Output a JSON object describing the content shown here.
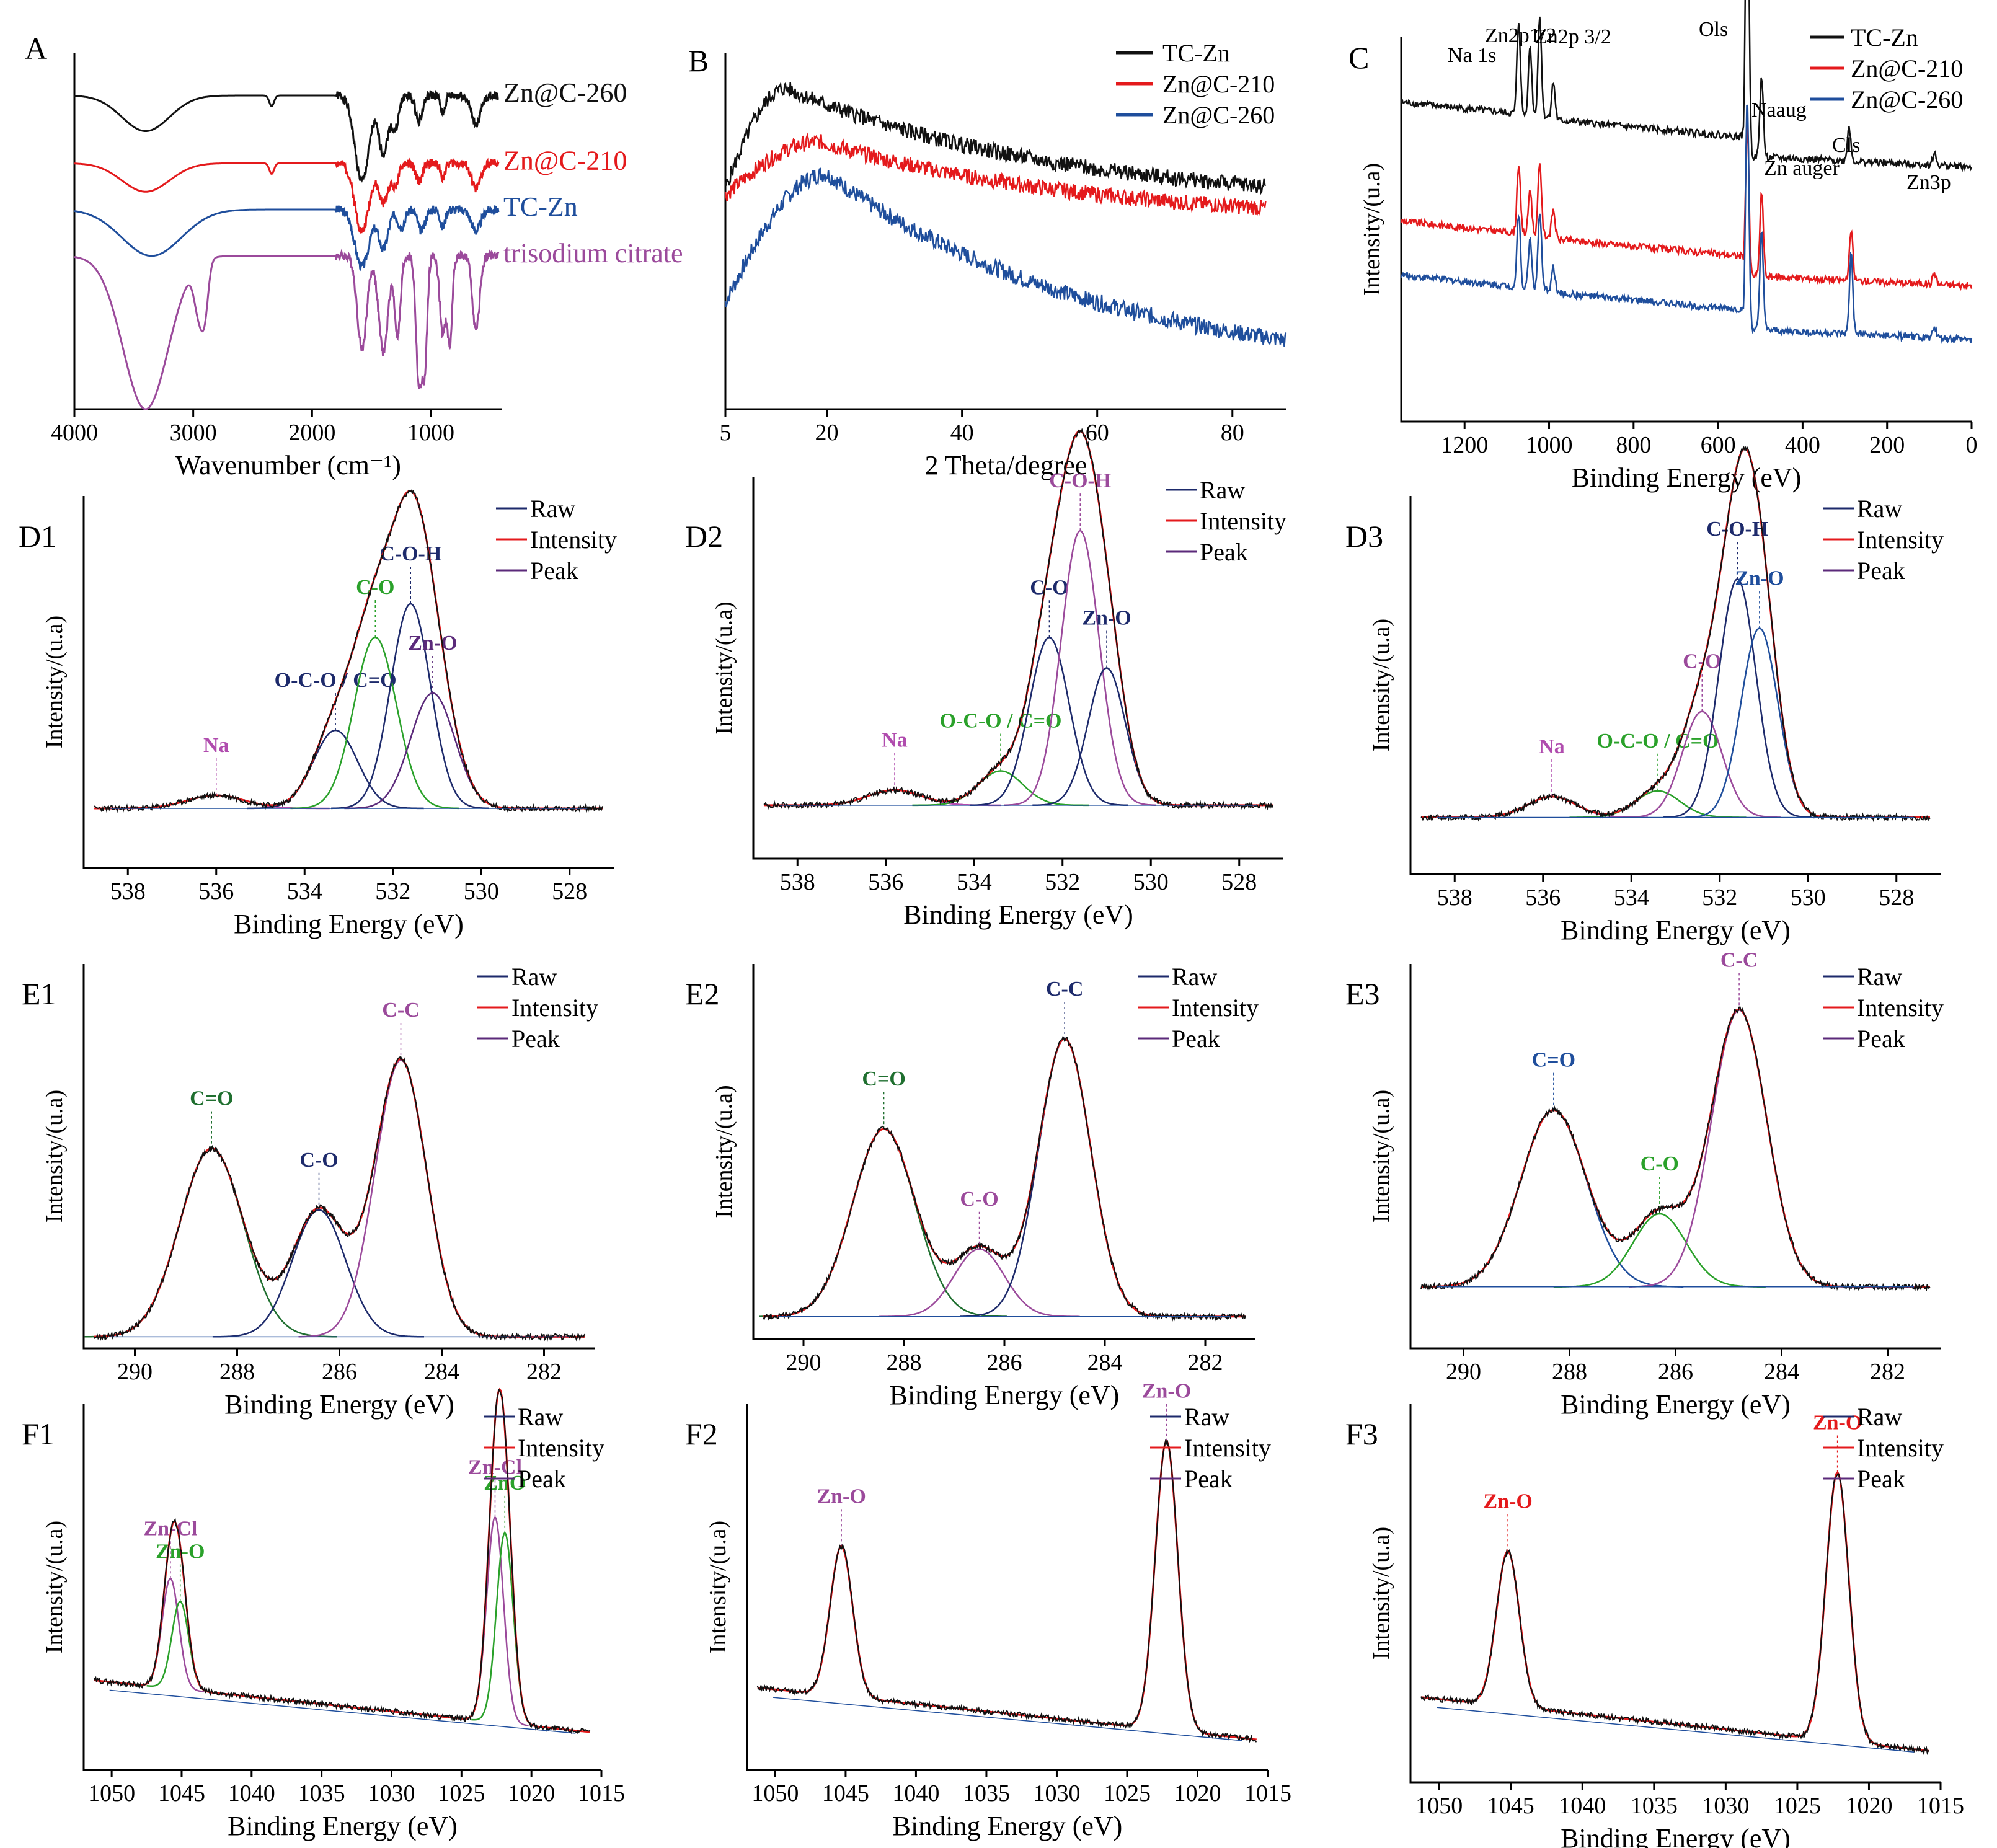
{
  "colors": {
    "black": "#111111",
    "red": "#e41a1c",
    "blue": "#1f4e9c",
    "purple": "#9b4a9b",
    "green": "#2aa12a",
    "navy": "#1d2a6b",
    "magenta": "#b04cae",
    "darkgreen": "#1f6f2f",
    "darkpurple": "#5b2a7a"
  },
  "chart_data": [
    {
      "panel": "A",
      "type": "line",
      "xlabel": "Wavenumber (cm⁻¹)",
      "ylabel": "",
      "xlim": [
        4000,
        400
      ],
      "ylim": [
        0,
        10
      ],
      "xticks": [
        4000,
        3000,
        2000,
        1000
      ],
      "series": [
        {
          "name": "Zn@C-260",
          "color": "black",
          "baseline": 8.8,
          "amp": 1.0,
          "seed": 1,
          "dips": [
            [
              3400,
              1.0,
              200
            ],
            [
              2340,
              0.3,
              20
            ],
            [
              1580,
              2.4,
              60
            ],
            [
              1400,
              1.6,
              40
            ],
            [
              1300,
              0.9,
              30
            ],
            [
              1100,
              0.7,
              30
            ],
            [
              900,
              0.5,
              20
            ],
            [
              620,
              0.8,
              40
            ]
          ]
        },
        {
          "name": "Zn@C-210",
          "color": "red",
          "baseline": 6.9,
          "amp": 1.0,
          "seed": 2,
          "dips": [
            [
              3400,
              0.8,
              200
            ],
            [
              2340,
              0.3,
              20
            ],
            [
              1580,
              1.9,
              60
            ],
            [
              1400,
              1.1,
              40
            ],
            [
              1300,
              0.6,
              30
            ],
            [
              1100,
              0.5,
              30
            ],
            [
              900,
              0.4,
              20
            ],
            [
              620,
              0.7,
              40
            ]
          ]
        },
        {
          "name": "TC-Zn",
          "color": "blue",
          "baseline": 5.6,
          "amp": 1.0,
          "seed": 3,
          "dips": [
            [
              3350,
              1.3,
              250
            ],
            [
              1580,
              1.6,
              60
            ],
            [
              1400,
              1.1,
              40
            ],
            [
              1250,
              0.5,
              30
            ],
            [
              1080,
              0.6,
              30
            ],
            [
              900,
              0.5,
              20
            ],
            [
              620,
              0.6,
              40
            ]
          ]
        },
        {
          "name": "trisodium citrate",
          "color": "purple",
          "baseline": 4.3,
          "amp": 1.0,
          "seed": 4,
          "dips": [
            [
              3400,
              4.3,
              190
            ],
            [
              2950,
              1.4,
              40
            ],
            [
              2900,
              1.1,
              30
            ],
            [
              1580,
              2.6,
              40
            ],
            [
              1400,
              2.7,
              40
            ],
            [
              1280,
              2.2,
              25
            ],
            [
              1100,
              3.6,
              25
            ],
            [
              1050,
              2.9,
              20
            ],
            [
              900,
              2.2,
              25
            ],
            [
              840,
              2.4,
              20
            ],
            [
              620,
              2.1,
              30
            ]
          ]
        }
      ]
    },
    {
      "panel": "B",
      "type": "line",
      "xlabel": "2 Theta/degree",
      "ylabel": "",
      "xlim": [
        5,
        88
      ],
      "ylim": [
        0,
        10
      ],
      "xticks": [
        5,
        20,
        40,
        60,
        80
      ],
      "series": [
        {
          "name": "TC-Zn",
          "color": "black",
          "peak_x": 14,
          "peak_y": 9.0,
          "start_y": 6.2,
          "end_x": 85,
          "end_y": 5.7,
          "noise": 0.28,
          "seed": 5
        },
        {
          "name": "Zn@C-210",
          "color": "red",
          "peak_x": 19,
          "peak_y": 7.5,
          "start_y": 6.0,
          "end_x": 85,
          "end_y": 5.2,
          "noise": 0.28,
          "seed": 6
        },
        {
          "name": "Zn@C-260",
          "color": "blue",
          "peak_x": 20,
          "peak_y": 6.6,
          "start_y": 3.0,
          "end_x": 88,
          "end_y": 0.9,
          "noise": 0.3,
          "seed": 7
        }
      ]
    },
    {
      "panel": "C",
      "type": "line",
      "xlabel": "Binding Energy (eV)",
      "ylabel": "Intensity/(u.a)",
      "xlim": [
        1350,
        0
      ],
      "ylim": [
        0,
        10
      ],
      "xticks": [
        1200,
        1000,
        800,
        600,
        400,
        200,
        0
      ],
      "labels": [
        "Na 1s",
        "Zn2p1/2",
        "Zn2p 3/2",
        "Ols",
        "Naaug",
        "Zn auger",
        "Cls",
        "Zn3p"
      ],
      "series": [
        {
          "name": "TC-Zn",
          "color": "black",
          "baseline": 7.4,
          "seed": 8,
          "peaks": [
            [
              1072,
              2.4
            ],
            [
              1045,
              1.8
            ],
            [
              1022,
              2.6
            ],
            [
              990,
              0.9
            ],
            [
              531,
              8.6
            ],
            [
              497,
              2.1
            ],
            [
              290,
              0.9
            ],
            [
              88,
              0.3
            ]
          ]
        },
        {
          "name": "Zn@C-210",
          "color": "red",
          "baseline": 4.3,
          "seed": 9,
          "peaks": [
            [
              1072,
              1.8
            ],
            [
              1045,
              1.2
            ],
            [
              1022,
              1.9
            ],
            [
              990,
              0.7
            ],
            [
              531,
              4.0
            ],
            [
              497,
              2.2
            ],
            [
              285,
              1.3
            ],
            [
              88,
              0.3
            ]
          ]
        },
        {
          "name": "Zn@C-260",
          "color": "blue",
          "baseline": 2.9,
          "seed": 10,
          "peaks": [
            [
              1072,
              1.9
            ],
            [
              1045,
              1.3
            ],
            [
              1022,
              2.0
            ],
            [
              990,
              0.6
            ],
            [
              531,
              6.0
            ],
            [
              497,
              2.6
            ],
            [
              285,
              2.1
            ],
            [
              88,
              0.3
            ]
          ]
        }
      ]
    },
    {
      "panel": "D1",
      "type": "line",
      "xlabel": "Binding Energy (eV)",
      "ylabel": "Intensity/(u.a)",
      "xlim": [
        539,
        527
      ],
      "ylim": [
        0,
        10
      ],
      "xticks": [
        538,
        536,
        534,
        532,
        530,
        528
      ],
      "legend": [
        "Raw",
        "Intensity",
        "Peak"
      ],
      "baseline": 1.6,
      "components": [
        {
          "center": 536.0,
          "height": 0.35,
          "width": 0.65,
          "color": "magenta",
          "label": "Na"
        },
        {
          "center": 533.3,
          "height": 2.1,
          "width": 0.5,
          "color": "navy",
          "label": "O-C-O / C=O"
        },
        {
          "center": 532.4,
          "height": 4.6,
          "width": 0.48,
          "color": "green",
          "label": "C-O"
        },
        {
          "center": 531.6,
          "height": 5.5,
          "width": 0.45,
          "color": "navy",
          "label": "C-O-H"
        },
        {
          "center": 531.1,
          "height": 3.1,
          "width": 0.5,
          "color": "darkpurple",
          "label": "Zn-O"
        }
      ]
    },
    {
      "panel": "D2",
      "type": "line",
      "xlabel": "Binding Energy (eV)",
      "ylabel": "Intensity/(u.a)",
      "xlim": [
        539,
        527
      ],
      "ylim": [
        0,
        10
      ],
      "xticks": [
        538,
        536,
        534,
        532,
        530,
        528
      ],
      "legend": [
        "Raw",
        "Intensity",
        "Peak"
      ],
      "baseline": 1.4,
      "components": [
        {
          "center": 535.8,
          "height": 0.4,
          "width": 0.6,
          "color": "magenta",
          "label": "Na"
        },
        {
          "center": 533.4,
          "height": 0.9,
          "width": 0.5,
          "color": "green",
          "label": "O-C-O / C=O"
        },
        {
          "center": 532.3,
          "height": 4.4,
          "width": 0.45,
          "color": "navy",
          "label": "C-O"
        },
        {
          "center": 531.6,
          "height": 7.2,
          "width": 0.43,
          "color": "purple",
          "label": "C-O-H"
        },
        {
          "center": 531.0,
          "height": 3.6,
          "width": 0.42,
          "color": "navy",
          "label": "Zn-O"
        }
      ]
    },
    {
      "panel": "D3",
      "type": "line",
      "xlabel": "Binding Energy (eV)",
      "ylabel": "Intensity/(u.a)",
      "xlim": [
        539,
        527
      ],
      "ylim": [
        0,
        10
      ],
      "xticks": [
        538,
        536,
        534,
        532,
        530,
        528
      ],
      "legend": [
        "Raw",
        "Intensity",
        "Peak"
      ],
      "baseline": 1.5,
      "components": [
        {
          "center": 535.8,
          "height": 0.55,
          "width": 0.55,
          "color": "magenta",
          "label": "Na"
        },
        {
          "center": 533.4,
          "height": 0.7,
          "width": 0.5,
          "color": "green",
          "label": "O-C-O / C=O"
        },
        {
          "center": 532.4,
          "height": 2.8,
          "width": 0.45,
          "color": "purple",
          "label": "C-O"
        },
        {
          "center": 531.6,
          "height": 6.3,
          "width": 0.42,
          "color": "navy",
          "label": "C-O-H"
        },
        {
          "center": 531.1,
          "height": 5.0,
          "width": 0.42,
          "color": "blue",
          "label": "Zn-O"
        }
      ]
    },
    {
      "panel": "E1",
      "type": "line",
      "xlabel": "Binding Energy (eV)",
      "ylabel": "Intensity/(u.a)",
      "xlim": [
        291,
        281
      ],
      "ylim": [
        0,
        10
      ],
      "xticks": [
        290,
        288,
        286,
        284,
        282
      ],
      "legend": [
        "Raw",
        "Intensity",
        "Peak"
      ],
      "baseline": 0.3,
      "components": [
        {
          "center": 288.5,
          "height": 4.9,
          "width": 0.62,
          "color": "darkgreen",
          "label": "C=O"
        },
        {
          "center": 286.4,
          "height": 3.3,
          "width": 0.52,
          "color": "navy",
          "label": "C-O"
        },
        {
          "center": 284.8,
          "height": 7.2,
          "width": 0.5,
          "color": "purple",
          "label": "C-C"
        }
      ]
    },
    {
      "panel": "E2",
      "type": "line",
      "xlabel": "Binding Energy (eV)",
      "ylabel": "Intensity/(u.a)",
      "xlim": [
        291,
        281
      ],
      "ylim": [
        0,
        10
      ],
      "xticks": [
        290,
        288,
        286,
        284,
        282
      ],
      "legend": [
        "Raw",
        "Intensity",
        "Peak"
      ],
      "baseline": 0.6,
      "components": [
        {
          "center": 288.4,
          "height": 5.0,
          "width": 0.62,
          "color": "darkgreen",
          "label": "C=O"
        },
        {
          "center": 286.5,
          "height": 1.8,
          "width": 0.5,
          "color": "purple",
          "label": "C-O"
        },
        {
          "center": 284.8,
          "height": 7.4,
          "width": 0.52,
          "color": "navy",
          "label": "C-C"
        }
      ]
    },
    {
      "panel": "E3",
      "type": "line",
      "xlabel": "Binding Energy (eV)",
      "ylabel": "Intensity/(u.a)",
      "xlim": [
        291,
        281
      ],
      "ylim": [
        0,
        10
      ],
      "xticks": [
        290,
        288,
        286,
        284,
        282
      ],
      "legend": [
        "Raw",
        "Intensity",
        "Peak"
      ],
      "baseline": 1.6,
      "components": [
        {
          "center": 288.3,
          "height": 4.6,
          "width": 0.62,
          "color": "blue",
          "label": "C=O"
        },
        {
          "center": 286.3,
          "height": 1.9,
          "width": 0.5,
          "color": "green",
          "label": "C-O"
        },
        {
          "center": 284.8,
          "height": 7.2,
          "width": 0.52,
          "color": "purple",
          "label": "C-C"
        }
      ]
    },
    {
      "panel": "F1",
      "type": "line",
      "xlabel": "Binding Energy (eV)",
      "ylabel": "Intensity/(u.a)",
      "xlim": [
        1052,
        1015
      ],
      "ylim": [
        0,
        10
      ],
      "xticks": [
        1050,
        1045,
        1040,
        1035,
        1030,
        1025,
        1020,
        1015
      ],
      "legend": [
        "Raw",
        "Intensity",
        "Peak"
      ],
      "baseline": 1.5,
      "labels": [
        "Zn-Cl",
        "Zn-O",
        "Zn-Cl",
        "ZnO"
      ],
      "components": [
        {
          "center": 1045.8,
          "height": 3.0,
          "width": 0.6,
          "color": "purple",
          "label": "Zn-Cl"
        },
        {
          "center": 1045.1,
          "height": 2.4,
          "width": 0.6,
          "color": "green",
          "label": "Zn-O"
        },
        {
          "center": 1022.6,
          "height": 5.6,
          "width": 0.6,
          "color": "purple",
          "label": "Zn-Cl"
        },
        {
          "center": 1021.9,
          "height": 5.2,
          "width": 0.6,
          "color": "green",
          "label": "ZnO"
        }
      ]
    },
    {
      "panel": "F2",
      "type": "line",
      "xlabel": "Binding Energy (eV)",
      "ylabel": "Intensity/(u.a)",
      "xlim": [
        1052,
        1015
      ],
      "ylim": [
        0,
        10
      ],
      "xticks": [
        1050,
        1045,
        1040,
        1035,
        1030,
        1025,
        1020,
        1015
      ],
      "legend": [
        "Raw",
        "Intensity",
        "Peak"
      ],
      "baseline": 1.3,
      "components": [
        {
          "center": 1045.3,
          "height": 4.1,
          "width": 0.8,
          "color": "purple",
          "label": "Zn-O"
        },
        {
          "center": 1022.2,
          "height": 7.9,
          "width": 0.8,
          "color": "purple",
          "label": "Zn-O"
        }
      ]
    },
    {
      "panel": "F3",
      "type": "line",
      "xlabel": "Binding Energy (eV)",
      "ylabel": "Intensity/(u.a)",
      "xlim": [
        1052,
        1015
      ],
      "ylim": [
        0,
        10
      ],
      "xticks": [
        1050,
        1045,
        1040,
        1035,
        1030,
        1025,
        1020,
        1015
      ],
      "legend": [
        "Raw",
        "Intensity",
        "Peak"
      ],
      "baseline": 1.3,
      "components": [
        {
          "center": 1045.2,
          "height": 4.1,
          "width": 0.8,
          "color": "red",
          "label": "Zn-O"
        },
        {
          "center": 1022.2,
          "height": 7.1,
          "width": 0.8,
          "color": "red",
          "label": "Zn-O"
        }
      ]
    }
  ]
}
